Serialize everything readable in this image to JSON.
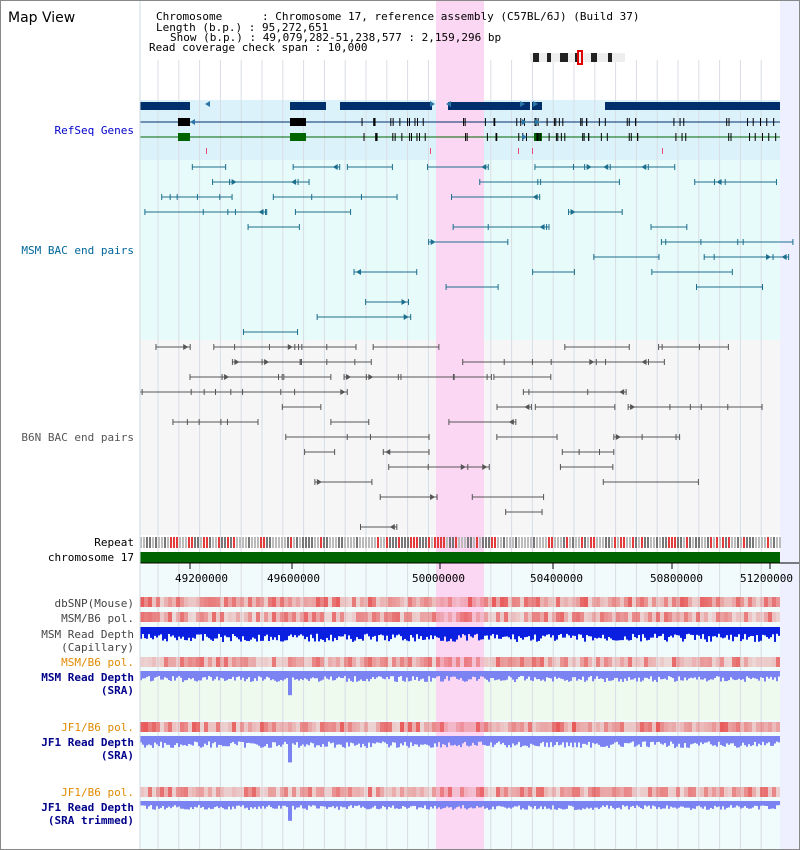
{
  "view_title": "Map View",
  "header": {
    "chromosome": "Chromosome      : Chromosome 17, reference assembly (C57BL/6J) (Build 37)",
    "length": "Length (b.p.) : 95,272,651",
    "show": "Show (b.p.) : 49,079,282-51,238,577 : 2,159,296 bp",
    "coverage": "Read coverage check span : 10,000"
  },
  "tracks": {
    "refseq": "RefSeq Genes",
    "msm_bac": "MSM BAC end pairs",
    "b6n_bac": "B6N BAC end pairs",
    "repeat": "Repeat",
    "chromosome": "chromosome 17",
    "dbsnp": "dbSNP(Mouse)",
    "msm_b6_pol_1": "MSM/B6 pol.",
    "msm_depth_cap_1": "MSM Read Depth",
    "msm_depth_cap_2": "(Capillary)",
    "msm_b6_pol_2": "MSM/B6 pol.",
    "msm_depth_sra_1": "MSM Read Depth",
    "msm_depth_sra_2": "(SRA)",
    "jf1_b6_pol_1": "JF1/B6 pol.",
    "jf1_depth_sra_1": "JF1 Read Depth",
    "jf1_depth_sra_2": "(SRA)",
    "jf1_b6_pol_2": "JF1/B6 pol.",
    "jf1_depth_trim_1": "JF1 Read Depth",
    "jf1_depth_trim_2": "(SRA trimmed)"
  },
  "axis": {
    "ticks": [
      "49200000",
      "49600000",
      "50000000",
      "50400000",
      "50800000",
      "51200000"
    ]
  },
  "colors": {
    "refseq_label": "#0000cc",
    "msm_label": "#006699",
    "b6n_label": "#555555",
    "pol_label_orange": "#e08a00",
    "depth_label_blue": "#00008b",
    "highlight": "#fbd7f3",
    "gene": "#002f6c",
    "gene_green": "#006400",
    "msm_bac": "#1b6e8e",
    "b6n_bac": "#555555",
    "chromosome_bar": "#006400",
    "capillary_depth": "#0a1fe0",
    "sra_depth": "#7b82f2"
  }
}
